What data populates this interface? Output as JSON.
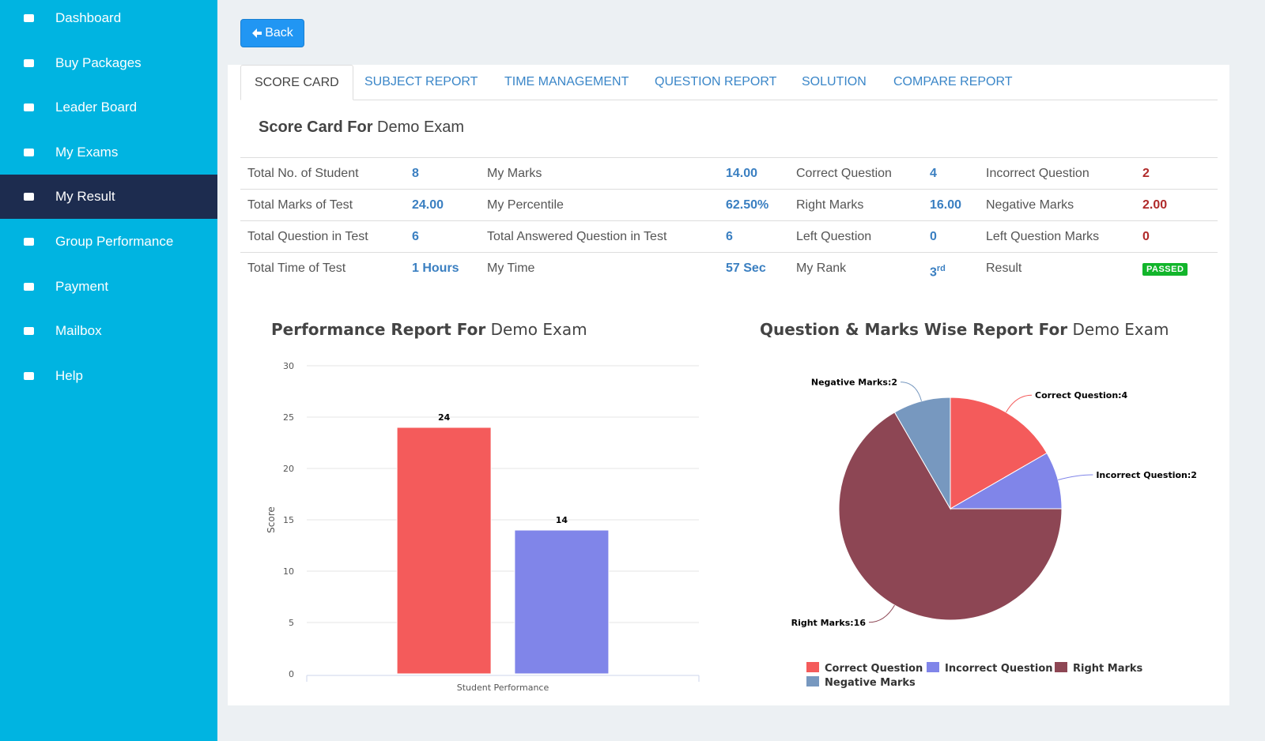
{
  "sidebar": {
    "items": [
      {
        "label": "Dashboard"
      },
      {
        "label": "Buy Packages"
      },
      {
        "label": "Leader Board"
      },
      {
        "label": "My Exams"
      },
      {
        "label": "My Result",
        "active": true
      },
      {
        "label": "Group Performance"
      },
      {
        "label": "Payment"
      },
      {
        "label": "Mailbox"
      },
      {
        "label": "Help"
      }
    ]
  },
  "back_button": "Back",
  "tabs": [
    {
      "label": "SCORE CARD",
      "active": true
    },
    {
      "label": "SUBJECT REPORT"
    },
    {
      "label": "TIME MANAGEMENT"
    },
    {
      "label": "QUESTION REPORT"
    },
    {
      "label": "SOLUTION"
    },
    {
      "label": "COMPARE REPORT"
    }
  ],
  "score_card": {
    "title": "Score Card For",
    "exam": "Demo Exam",
    "rows": [
      [
        "Total No. of Student",
        "8",
        "My Marks",
        "14.00",
        "Correct Question",
        "4",
        "Incorrect Question",
        "2"
      ],
      [
        "Total Marks of Test",
        "24.00",
        "My Percentile",
        "62.50%",
        "Right Marks",
        "16.00",
        "Negative Marks",
        "2.00"
      ],
      [
        "Total Question in Test",
        "6",
        "Total Answered Question in Test",
        "6",
        "Left Question",
        "0",
        "Left Question Marks",
        "0"
      ],
      [
        "Total Time of Test",
        "1 Hours",
        "My Time",
        "57 Sec",
        "My Rank",
        {
          "text": "3",
          "sup": "rd"
        },
        "Result",
        {
          "badge": "PASSED"
        }
      ]
    ]
  },
  "chart_data": [
    {
      "type": "bar",
      "title": "Performance Report For",
      "title_suffix": "Demo Exam",
      "y_label": "Score",
      "categories": [
        "Student Performance"
      ],
      "series": [
        {
          "color": "#f45b5b",
          "values": [
            24
          ]
        },
        {
          "color": "#8085e9",
          "values": [
            14
          ]
        }
      ],
      "ylim": [
        0,
        30
      ],
      "yticks": [
        0,
        5,
        10,
        15,
        20,
        25,
        30
      ],
      "grid": true
    },
    {
      "type": "pie",
      "title": "Question & Marks Wise Report For",
      "title_suffix": "Demo Exam",
      "categories": [
        "Correct Question",
        "Incorrect Question",
        "Right Marks",
        "Negative Marks"
      ],
      "values": [
        4,
        2,
        16,
        2
      ],
      "value_labels": [
        "Correct Question:4",
        "Incorrect Question:2",
        "Right Marks:16",
        "Negative Marks:2"
      ],
      "colors": [
        "#f45b5b",
        "#8085e9",
        "#8d4654",
        "#7798bf"
      ],
      "legend": "bottom"
    }
  ]
}
